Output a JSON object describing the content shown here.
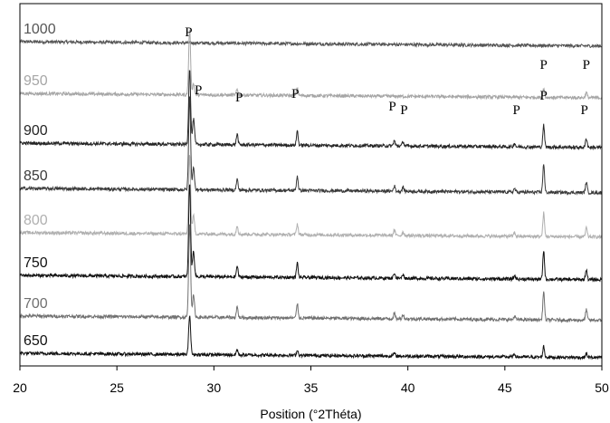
{
  "chart_data": {
    "type": "line",
    "xlabel": "Position (°2Théta)",
    "ylabel": "",
    "xlim": [
      20,
      50
    ],
    "ylim": [
      0,
      100
    ],
    "x_ticks": [
      20,
      25,
      30,
      35,
      40,
      45,
      50
    ],
    "grid": false,
    "legend": "none",
    "baseline_slope": -0.04,
    "series": [
      {
        "name": "1000",
        "color": "#555555",
        "baseline": 89.5,
        "peaks": []
      },
      {
        "name": "950",
        "color": "#a6a6a6",
        "baseline": 75.2,
        "peaks": [
          [
            28.75,
            18
          ],
          [
            28.95,
            3
          ],
          [
            31.2,
            1.5
          ],
          [
            34.3,
            2
          ],
          [
            47.0,
            2.5
          ],
          [
            49.2,
            1.5
          ]
        ]
      },
      {
        "name": "900",
        "color": "#262626",
        "baseline": 61.5,
        "peaks": [
          [
            28.75,
            21
          ],
          [
            28.95,
            7
          ],
          [
            31.2,
            3
          ],
          [
            34.3,
            4
          ],
          [
            39.3,
            1.5
          ],
          [
            39.75,
            1.2
          ],
          [
            45.5,
            1
          ],
          [
            47.0,
            6
          ],
          [
            49.2,
            2.5
          ]
        ]
      },
      {
        "name": "850",
        "color": "#3a3a3a",
        "baseline": 49.0,
        "peaks": [
          [
            28.75,
            26
          ],
          [
            28.95,
            6
          ],
          [
            31.2,
            3
          ],
          [
            34.3,
            4
          ],
          [
            39.3,
            1.5
          ],
          [
            39.75,
            1.2
          ],
          [
            45.5,
            1
          ],
          [
            47.0,
            8
          ],
          [
            49.2,
            3
          ]
        ]
      },
      {
        "name": "800",
        "color": "#b0b0b0",
        "baseline": 36.8,
        "peaks": [
          [
            28.75,
            22
          ],
          [
            28.95,
            5
          ],
          [
            31.2,
            2.5
          ],
          [
            34.3,
            3
          ],
          [
            39.3,
            1.5
          ],
          [
            39.75,
            1
          ],
          [
            45.5,
            1
          ],
          [
            47.0,
            6.5
          ],
          [
            49.2,
            2.5
          ]
        ]
      },
      {
        "name": "750",
        "color": "#111111",
        "baseline": 25.0,
        "peaks": [
          [
            28.75,
            26
          ],
          [
            28.95,
            7
          ],
          [
            31.2,
            3
          ],
          [
            34.3,
            4
          ],
          [
            39.3,
            1.5
          ],
          [
            39.75,
            1.2
          ],
          [
            45.5,
            1
          ],
          [
            47.0,
            8
          ],
          [
            49.2,
            2.8
          ]
        ]
      },
      {
        "name": "700",
        "color": "#707070",
        "baseline": 13.8,
        "peaks": [
          [
            28.75,
            26
          ],
          [
            28.95,
            6
          ],
          [
            31.2,
            3
          ],
          [
            34.3,
            4
          ],
          [
            39.3,
            1.5
          ],
          [
            39.75,
            1.2
          ],
          [
            45.5,
            1
          ],
          [
            47.0,
            8
          ],
          [
            49.2,
            3
          ]
        ]
      },
      {
        "name": "650",
        "color": "#111111",
        "baseline": 3.5,
        "peaks": [
          [
            28.75,
            11
          ],
          [
            31.2,
            1.5
          ],
          [
            34.3,
            1.5
          ],
          [
            39.3,
            0.8
          ],
          [
            45.5,
            0.8
          ],
          [
            47.0,
            3
          ],
          [
            49.2,
            1.2
          ]
        ]
      }
    ],
    "annotations": [
      {
        "text": "P",
        "x": 28.7,
        "y": 91
      },
      {
        "text": "P",
        "x": 29.2,
        "y": 75
      },
      {
        "text": "P",
        "x": 31.3,
        "y": 73
      },
      {
        "text": "P",
        "x": 34.2,
        "y": 74
      },
      {
        "text": "P",
        "x": 39.2,
        "y": 70.5
      },
      {
        "text": "P",
        "x": 39.8,
        "y": 69.5
      },
      {
        "text": "P",
        "x": 45.6,
        "y": 69.5
      },
      {
        "text": "P",
        "x": 47.0,
        "y": 82
      },
      {
        "text": "P",
        "x": 49.2,
        "y": 82
      },
      {
        "text": "P",
        "x": 47.0,
        "y": 73.5
      },
      {
        "text": "P",
        "x": 49.1,
        "y": 69.5
      }
    ]
  }
}
